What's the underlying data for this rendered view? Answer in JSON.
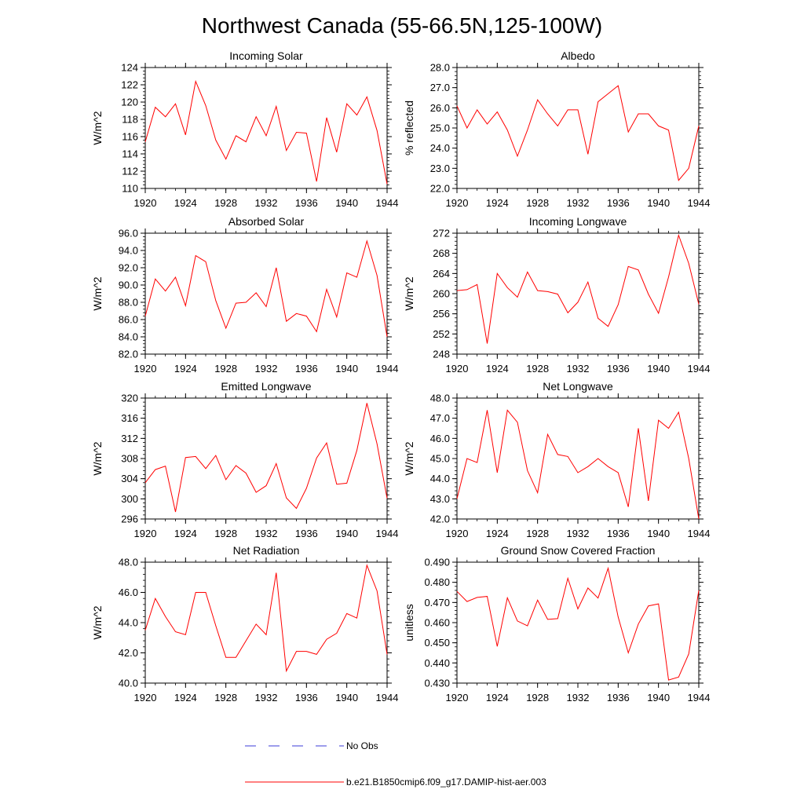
{
  "page": {
    "title": "Northwest Canada (55-66.5N,125-100W)"
  },
  "legend": {
    "items": [
      {
        "label": "No Obs",
        "color": "#3b3bd9",
        "style": "dashed"
      },
      {
        "label": "b.e21.B1850cmip6.f09_g17.DAMIP-hist-aer.003",
        "color": "#ff0000",
        "style": "solid"
      }
    ]
  },
  "chart_data": [
    {
      "type": "line",
      "title": "Incoming Solar",
      "xlabel": "",
      "ylabel": "W/m^2",
      "xlim": [
        1920,
        1944
      ],
      "ylim": [
        110,
        124
      ],
      "yticks": [
        "110",
        "112",
        "114",
        "116",
        "118",
        "120",
        "122",
        "124"
      ],
      "xticks": [
        "1920",
        "1924",
        "1928",
        "1932",
        "1936",
        "1940",
        "1944"
      ],
      "x": [
        1920,
        1921,
        1922,
        1923,
        1924,
        1925,
        1926,
        1927,
        1928,
        1929,
        1930,
        1931,
        1932,
        1933,
        1934,
        1935,
        1936,
        1937,
        1938,
        1939,
        1940,
        1941,
        1942,
        1943,
        1944
      ],
      "series": [
        {
          "color": "#ff0000",
          "values": [
            115.4,
            119.4,
            118.3,
            119.8,
            116.2,
            122.4,
            119.6,
            115.6,
            113.4,
            116.1,
            115.4,
            118.3,
            116.1,
            119.5,
            114.4,
            116.5,
            116.4,
            110.8,
            118.2,
            114.2,
            119.8,
            118.5,
            120.6,
            116.7,
            110.5
          ]
        }
      ]
    },
    {
      "type": "line",
      "title": "Albedo",
      "xlabel": "",
      "ylabel": "% reflected",
      "xlim": [
        1920,
        1944
      ],
      "ylim": [
        22.0,
        28.0
      ],
      "yticks": [
        "22.0",
        "23.0",
        "24.0",
        "25.0",
        "26.0",
        "27.0",
        "28.0"
      ],
      "xticks": [
        "1920",
        "1924",
        "1928",
        "1932",
        "1936",
        "1940",
        "1944"
      ],
      "x": [
        1920,
        1921,
        1922,
        1923,
        1924,
        1925,
        1926,
        1927,
        1928,
        1929,
        1930,
        1931,
        1932,
        1933,
        1934,
        1935,
        1936,
        1937,
        1938,
        1939,
        1940,
        1941,
        1942,
        1943,
        1944
      ],
      "series": [
        {
          "color": "#ff0000",
          "values": [
            26.1,
            25.0,
            25.9,
            25.2,
            25.8,
            24.9,
            23.6,
            24.9,
            26.4,
            25.7,
            25.1,
            25.9,
            25.9,
            23.7,
            26.3,
            26.7,
            27.1,
            24.8,
            25.7,
            25.7,
            25.1,
            24.9,
            22.4,
            23.0,
            25.1
          ]
        }
      ]
    },
    {
      "type": "line",
      "title": "Absorbed Solar",
      "xlabel": "",
      "ylabel": "W/m^2",
      "xlim": [
        1920,
        1944
      ],
      "ylim": [
        82.0,
        96.0
      ],
      "yticks": [
        "82.0",
        "84.0",
        "86.0",
        "88.0",
        "90.0",
        "92.0",
        "94.0",
        "96.0"
      ],
      "xticks": [
        "1920",
        "1924",
        "1928",
        "1932",
        "1936",
        "1940",
        "1944"
      ],
      "x": [
        1920,
        1921,
        1922,
        1923,
        1924,
        1925,
        1926,
        1927,
        1928,
        1929,
        1930,
        1931,
        1932,
        1933,
        1934,
        1935,
        1936,
        1937,
        1938,
        1939,
        1940,
        1941,
        1942,
        1943,
        1944
      ],
      "series": [
        {
          "color": "#ff0000",
          "values": [
            86.4,
            90.7,
            89.3,
            90.9,
            87.6,
            93.4,
            92.7,
            88.2,
            85.0,
            87.9,
            88.0,
            89.1,
            87.5,
            92.0,
            85.8,
            86.7,
            86.4,
            84.6,
            89.5,
            86.3,
            91.4,
            90.9,
            95.1,
            91.1,
            84.0
          ]
        }
      ]
    },
    {
      "type": "line",
      "title": "Incoming Longwave",
      "xlabel": "",
      "ylabel": "W/m^2",
      "xlim": [
        1920,
        1944
      ],
      "ylim": [
        248,
        272
      ],
      "yticks": [
        "248",
        "252",
        "256",
        "260",
        "264",
        "268",
        "272"
      ],
      "xticks": [
        "1920",
        "1924",
        "1928",
        "1932",
        "1936",
        "1940",
        "1944"
      ],
      "x": [
        1920,
        1921,
        1922,
        1923,
        1924,
        1925,
        1926,
        1927,
        1928,
        1929,
        1930,
        1931,
        1932,
        1933,
        1934,
        1935,
        1936,
        1937,
        1938,
        1939,
        1940,
        1941,
        1942,
        1943,
        1944
      ],
      "series": [
        {
          "color": "#ff0000",
          "values": [
            260.6,
            260.8,
            261.8,
            250.1,
            264.0,
            261.2,
            259.3,
            264.3,
            260.6,
            260.4,
            259.9,
            256.2,
            258.3,
            262.3,
            255.1,
            253.5,
            257.8,
            265.4,
            264.7,
            259.9,
            256.1,
            263.3,
            271.6,
            266.0,
            257.9
          ]
        }
      ]
    },
    {
      "type": "line",
      "title": "Emitted Longwave",
      "xlabel": "",
      "ylabel": "W/m^2",
      "xlim": [
        1920,
        1944
      ],
      "ylim": [
        296,
        320
      ],
      "yticks": [
        "296",
        "300",
        "304",
        "308",
        "312",
        "316",
        "320"
      ],
      "xticks": [
        "1920",
        "1924",
        "1928",
        "1932",
        "1936",
        "1940",
        "1944"
      ],
      "x": [
        1920,
        1921,
        1922,
        1923,
        1924,
        1925,
        1926,
        1927,
        1928,
        1929,
        1930,
        1931,
        1932,
        1933,
        1934,
        1935,
        1936,
        1937,
        1938,
        1939,
        1940,
        1941,
        1942,
        1943,
        1944
      ],
      "series": [
        {
          "color": "#ff0000",
          "values": [
            303.2,
            305.8,
            306.5,
            297.4,
            308.2,
            308.4,
            306.0,
            308.6,
            303.8,
            306.6,
            305.1,
            301.3,
            302.6,
            307.0,
            300.2,
            298.1,
            302.1,
            308.1,
            311.1,
            302.9,
            303.1,
            309.6,
            319.0,
            310.9,
            300.1
          ]
        }
      ]
    },
    {
      "type": "line",
      "title": "Net Longwave",
      "xlabel": "",
      "ylabel": "W/m^2",
      "xlim": [
        1920,
        1944
      ],
      "ylim": [
        42.0,
        48.0
      ],
      "yticks": [
        "42.0",
        "43.0",
        "44.0",
        "45.0",
        "46.0",
        "47.0",
        "48.0"
      ],
      "xticks": [
        "1920",
        "1924",
        "1928",
        "1932",
        "1936",
        "1940",
        "1944"
      ],
      "x": [
        1920,
        1921,
        1922,
        1923,
        1924,
        1925,
        1926,
        1927,
        1928,
        1929,
        1930,
        1931,
        1932,
        1933,
        1934,
        1935,
        1936,
        1937,
        1938,
        1939,
        1940,
        1941,
        1942,
        1943,
        1944
      ],
      "series": [
        {
          "color": "#ff0000",
          "values": [
            43.0,
            45.0,
            44.8,
            47.4,
            44.3,
            47.4,
            46.8,
            44.4,
            43.3,
            46.2,
            45.2,
            45.1,
            44.3,
            44.6,
            45.0,
            44.6,
            44.3,
            42.6,
            46.5,
            42.9,
            46.9,
            46.5,
            47.3,
            45.0,
            42.0
          ]
        }
      ]
    },
    {
      "type": "line",
      "title": "Net Radiation",
      "xlabel": "",
      "ylabel": "W/m^2",
      "xlim": [
        1920,
        1944
      ],
      "ylim": [
        40.0,
        48.0
      ],
      "yticks": [
        "40.0",
        "42.0",
        "44.0",
        "46.0",
        "48.0"
      ],
      "xticks": [
        "1920",
        "1924",
        "1928",
        "1932",
        "1936",
        "1940",
        "1944"
      ],
      "x": [
        1920,
        1921,
        1922,
        1923,
        1924,
        1925,
        1926,
        1927,
        1928,
        1929,
        1930,
        1931,
        1932,
        1933,
        1934,
        1935,
        1936,
        1937,
        1938,
        1939,
        1940,
        1941,
        1942,
        1943,
        1944
      ],
      "series": [
        {
          "color": "#ff0000",
          "values": [
            43.5,
            45.6,
            44.4,
            43.4,
            43.2,
            46.0,
            46.0,
            43.8,
            41.7,
            41.7,
            42.8,
            43.9,
            43.2,
            47.3,
            40.8,
            42.1,
            42.1,
            41.9,
            42.9,
            43.3,
            44.6,
            44.3,
            47.8,
            46.1,
            41.9
          ]
        }
      ]
    },
    {
      "type": "line",
      "title": "Ground Snow Covered Fraction",
      "xlabel": "",
      "ylabel": "unitless",
      "xlim": [
        1920,
        1944
      ],
      "ylim": [
        0.43,
        0.49
      ],
      "yticks": [
        "0.430",
        "0.440",
        "0.450",
        "0.460",
        "0.470",
        "0.480",
        "0.490"
      ],
      "xticks": [
        "1920",
        "1924",
        "1928",
        "1932",
        "1936",
        "1940",
        "1944"
      ],
      "x": [
        1920,
        1921,
        1922,
        1923,
        1924,
        1925,
        1926,
        1927,
        1928,
        1929,
        1930,
        1931,
        1932,
        1933,
        1934,
        1935,
        1936,
        1937,
        1938,
        1939,
        1940,
        1941,
        1942,
        1943,
        1944
      ],
      "series": [
        {
          "color": "#ff0000",
          "values": [
            0.4755,
            0.4705,
            0.4725,
            0.473,
            0.4482,
            0.4723,
            0.4608,
            0.4584,
            0.4712,
            0.4616,
            0.462,
            0.482,
            0.4668,
            0.4772,
            0.4722,
            0.487,
            0.4628,
            0.445,
            0.4593,
            0.4683,
            0.4693,
            0.4315,
            0.433,
            0.4445,
            0.476
          ]
        }
      ]
    }
  ]
}
